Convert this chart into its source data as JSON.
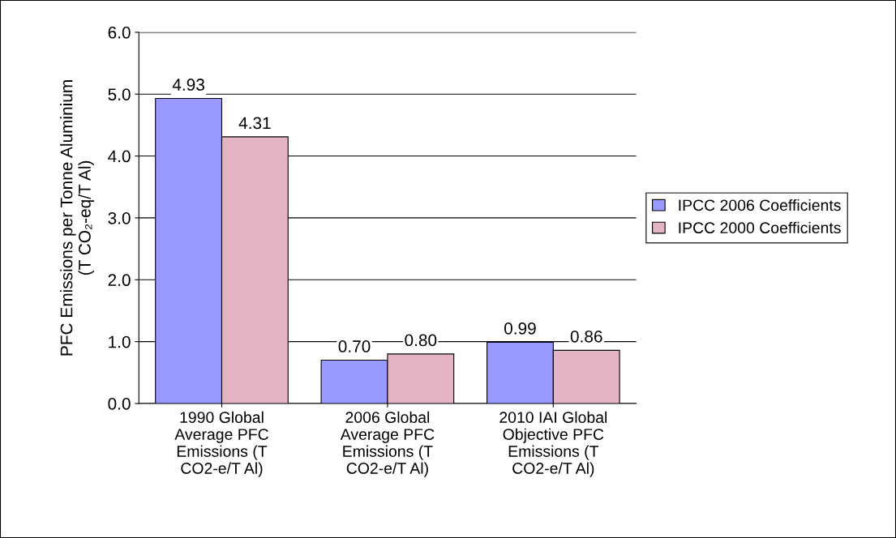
{
  "chart_data": {
    "type": "bar",
    "ylabel": "PFC Emissions per Tonne Aluminium\n(T CO₂-eq/T Al)",
    "categories": [
      "1990 Global\nAverage PFC\nEmissions (T\nCO2-e/T Al)",
      "2006 Global\nAverage PFC\nEmissions (T\nCO2-e/T Al)",
      "2010 IAI Global\nObjective PFC\nEmissions (T\nCO2-e/T Al)"
    ],
    "series": [
      {
        "name": "IPCC 2006 Coefficients",
        "color": "#9999ff",
        "values": [
          4.93,
          0.7,
          0.99
        ],
        "value_labels": [
          "4.93",
          "0.70",
          "0.99"
        ]
      },
      {
        "name": "IPCC 2000 Coefficients",
        "color": "#e2b4c4",
        "values": [
          4.31,
          0.8,
          0.86
        ],
        "value_labels": [
          "4.31",
          "0.80",
          "0.86"
        ]
      }
    ],
    "ylim": [
      0,
      6
    ],
    "yticks": [
      {
        "value": 0,
        "label": "0.0"
      },
      {
        "value": 1,
        "label": "1.0"
      },
      {
        "value": 2,
        "label": "2.0"
      },
      {
        "value": 3,
        "label": "3.0"
      },
      {
        "value": 4,
        "label": "4.0"
      },
      {
        "value": 5,
        "label": "5.0"
      },
      {
        "value": 6,
        "label": "6.0"
      }
    ],
    "grid": "y",
    "legend": "right"
  }
}
